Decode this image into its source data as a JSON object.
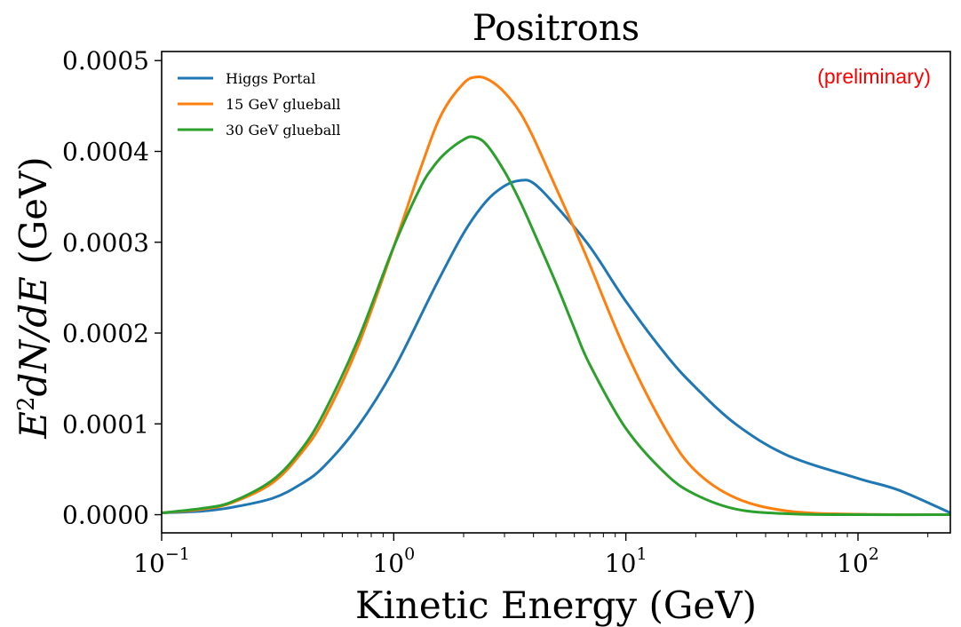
{
  "chart_data": {
    "type": "line",
    "title": "Positrons",
    "xlabel": "Kinetic Energy (GeV)",
    "ylabel": {
      "e": "E",
      "sup": "2",
      "mid": "dN/dE",
      "unit": " (GeV)"
    },
    "x_scale": "log",
    "xlim": [
      0.1,
      250
    ],
    "ylim": [
      -2e-05,
      0.00051
    ],
    "grid": false,
    "legend_position": "upper-left",
    "annotation": {
      "text": "(preliminary)",
      "color": "#ff0000",
      "position": "top-right"
    },
    "x_ticks": [
      {
        "value": 0.1,
        "base": "10",
        "exp": "−1"
      },
      {
        "value": 1,
        "base": "10",
        "exp": "0"
      },
      {
        "value": 10,
        "base": "10",
        "exp": "1"
      },
      {
        "value": 100,
        "base": "10",
        "exp": "2"
      }
    ],
    "y_ticks": [
      {
        "value": 0,
        "label": "0.0000"
      },
      {
        "value": 0.0001,
        "label": "0.0001"
      },
      {
        "value": 0.0002,
        "label": "0.0002"
      },
      {
        "value": 0.0003,
        "label": "0.0003"
      },
      {
        "value": 0.0004,
        "label": "0.0004"
      },
      {
        "value": 0.0005,
        "label": "0.0005"
      }
    ],
    "series": [
      {
        "name": "Higgs Portal",
        "color": "#1f77b4",
        "x": [
          0.1,
          0.15,
          0.2,
          0.3,
          0.4,
          0.5,
          0.7,
          1.0,
          1.5,
          2.0,
          2.5,
          3.0,
          3.5,
          4.0,
          5.0,
          7.0,
          10,
          15,
          20,
          30,
          50,
          100,
          150,
          250
        ],
        "y": [
          2e-06,
          4e-06,
          8e-06,
          1.8e-05,
          3.4e-05,
          5.3e-05,
          9.7e-05,
          0.00016,
          0.00025,
          0.00031,
          0.000345,
          0.000362,
          0.000368,
          0.000365,
          0.00034,
          0.000295,
          0.000235,
          0.000175,
          0.00014,
          9.9e-05,
          6.5e-05,
          4e-05,
          2.7e-05,
          2e-06
        ]
      },
      {
        "name": "15 GeV glueball",
        "color": "#ff7f0e",
        "x": [
          0.1,
          0.15,
          0.2,
          0.3,
          0.4,
          0.5,
          0.7,
          1.0,
          1.3,
          1.6,
          2.0,
          2.3,
          2.6,
          3.0,
          3.5,
          4.0,
          5.0,
          6.0,
          7.0,
          10,
          15,
          20,
          30,
          50,
          100,
          250
        ],
        "y": [
          2e-06,
          6e-06,
          1.3e-05,
          3.5e-05,
          6.8e-05,
          0.000105,
          0.000185,
          0.000295,
          0.00038,
          0.00044,
          0.000475,
          0.000482,
          0.000478,
          0.000465,
          0.000443,
          0.000415,
          0.00036,
          0.000315,
          0.000275,
          0.00018,
          9.2e-05,
          4.8e-05,
          1.8e-05,
          4e-06,
          5e-07,
          0.0
        ]
      },
      {
        "name": "30 GeV glueball",
        "color": "#2ca02c",
        "x": [
          0.1,
          0.15,
          0.2,
          0.3,
          0.4,
          0.5,
          0.7,
          1.0,
          1.3,
          1.5,
          1.7,
          2.0,
          2.2,
          2.5,
          3.0,
          3.5,
          4.0,
          5.0,
          6.0,
          7.0,
          10,
          15,
          20,
          30,
          50,
          100,
          250
        ],
        "y": [
          2e-06,
          7e-06,
          1.4e-05,
          3.8e-05,
          7.2e-05,
          0.000112,
          0.000192,
          0.000295,
          0.00036,
          0.000385,
          0.0004,
          0.000413,
          0.000416,
          0.000408,
          0.000378,
          0.000345,
          0.000312,
          0.000255,
          0.000205,
          0.000165,
          9.5e-05,
          4.4e-05,
          2.2e-05,
          6e-06,
          1e-06,
          0.0,
          0.0
        ]
      }
    ]
  }
}
